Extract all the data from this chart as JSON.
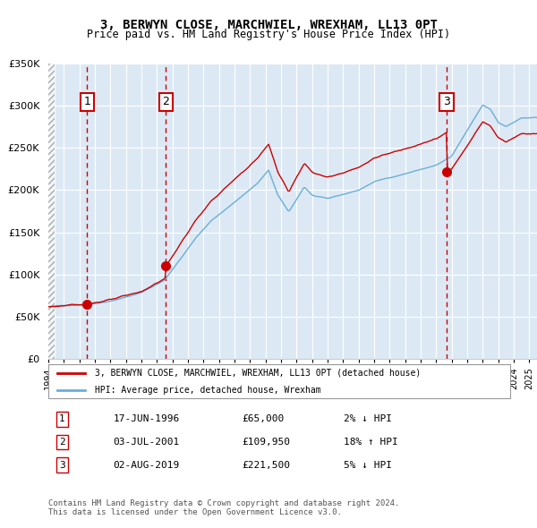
{
  "title": "3, BERWYN CLOSE, MARCHWIEL, WREXHAM, LL13 0PT",
  "subtitle": "Price paid vs. HM Land Registry's House Price Index (HPI)",
  "sales": [
    {
      "num": 1,
      "date": "1996-06-17",
      "price": 65000,
      "label": "17-JUN-1996",
      "price_label": "£65,000",
      "hpi_label": "2% ↓ HPI"
    },
    {
      "num": 2,
      "date": "2001-07-03",
      "price": 109950,
      "label": "03-JUL-2001",
      "price_label": "£109,950",
      "hpi_label": "18% ↑ HPI"
    },
    {
      "num": 3,
      "date": "2019-08-02",
      "price": 221500,
      "label": "02-AUG-2019",
      "price_label": "£221,500",
      "hpi_label": "5% ↓ HPI"
    }
  ],
  "legend_property": "3, BERWYN CLOSE, MARCHWIEL, WREXHAM, LL13 0PT (detached house)",
  "legend_hpi": "HPI: Average price, detached house, Wrexham",
  "footer": "Contains HM Land Registry data © Crown copyright and database right 2024.\nThis data is licensed under the Open Government Licence v3.0.",
  "hpi_color": "#6baed6",
  "property_color": "#cc0000",
  "dashed_color": "#cc0000",
  "background_left": "#dce9f5",
  "background_right": "#dce9f5",
  "ylim": [
    0,
    350000
  ],
  "xmin": 1994,
  "xmax": 2025.5
}
